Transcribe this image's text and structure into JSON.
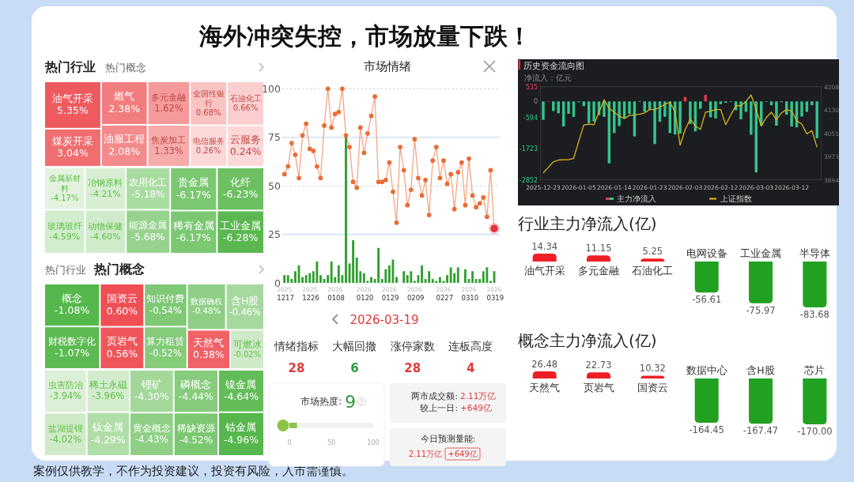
{
  "chart_data": [
    {
      "type": "other",
      "title": "海外冲突失控，市场放量下跌！",
      "annotations": [
        "案例仅供教学，不作为投资建议，投资有风险，入市需谨慎。"
      ]
    },
    {
      "type": "other",
      "title": "热门行业",
      "subtitle": "热门概念",
      "categories": [
        "油气开采",
        "煤炭开采",
        "燃气",
        "油服工程",
        "多元金融",
        "焦炭加工",
        "全国性银行",
        "石油化工",
        "电信服务",
        "云服务"
      ],
      "values": [
        5.35,
        3.04,
        2.38,
        2.08,
        1.62,
        1.33,
        0.68,
        0.66,
        0.26,
        0.24
      ],
      "value_labels": [
        "5.35%",
        "3.04%",
        "2.38%",
        "2.08%",
        "1.62%",
        "1.33%",
        "0.68%",
        "0.66%",
        "0.26%",
        "0.24%"
      ],
      "colors": [
        "#ee5a5e",
        "#f06d70",
        "#f27d7f",
        "#f38a8b",
        "#f59a9a",
        "#f7abab",
        "#fac3c3",
        "#fbcfcf",
        "#fcd8d8",
        "#fcd8d8"
      ]
    },
    {
      "type": "other",
      "categories": [
        "金属新材料",
        "玻璃玻纤",
        "冶钢原料",
        "动物保健",
        "农用化工",
        "能源金属",
        "贵金属",
        "稀有金属",
        "化纤",
        "工业金属"
      ],
      "values": [
        -4.17,
        -4.59,
        -4.21,
        -4.6,
        -5.18,
        -5.68,
        -6.17,
        -6.17,
        -6.23,
        -6.28
      ],
      "value_labels": [
        "-4.17%",
        "-4.59%",
        "-4.21%",
        "-4.60%",
        "-5.18%",
        "-5.68%",
        "-6.17%",
        "-6.17%",
        "-6.23%",
        "-6.28%"
      ],
      "colors": [
        "#e2f2de",
        "#d3ecce",
        "#d7eed2",
        "#d0ebca",
        "#a9dca1",
        "#97d38e",
        "#7cc872",
        "#7cc872",
        "#6cc062",
        "#5bb851"
      ]
    },
    {
      "type": "other",
      "title": "热门概念",
      "subtitle": "热门行业",
      "categories": [
        "概念",
        "财税数字化",
        "国资云",
        "页岩气",
        "知识付费",
        "算力租赁",
        "数据确权",
        "含H股",
        "天然气",
        "可燃冰"
      ],
      "values": [
        -1.08,
        -1.07,
        0.6,
        0.56,
        -0.54,
        -0.52,
        -0.48,
        -0.46,
        0.38,
        -0.02
      ],
      "value_labels": [
        "-1.08%",
        "-1.07%",
        "0.60%",
        "0.56%",
        "-0.54%",
        "-0.52%",
        "-0.48%",
        "-0.46%",
        "0.38%",
        "-0.02%"
      ],
      "colors": [
        "#56b84c",
        "#5bba51",
        "#ee4f55",
        "#ef565b",
        "#7fc875",
        "#84cb7a",
        "#8ecf85",
        "#a6d99e",
        "#f06268",
        "#cfeac8"
      ]
    },
    {
      "type": "other",
      "categories": [
        "虫害防治",
        "盐湖提锂",
        "稀土永磁",
        "钛金属",
        "锂矿",
        "黄金概念",
        "磷概念",
        "稀缺资源",
        "镍金属",
        "钴金属"
      ],
      "values": [
        -3.94,
        -4.02,
        -3.96,
        -4.29,
        -4.3,
        -4.43,
        -4.44,
        -4.52,
        -4.64,
        -4.96
      ],
      "value_labels": [
        "-3.94%",
        "-4.02%",
        "-3.96%",
        "-4.29%",
        "-4.30%",
        "-4.43%",
        "-4.44%",
        "-4.52%",
        "-4.64%",
        "-4.96%"
      ],
      "colors": [
        "#dcefd7",
        "#d0eac9",
        "#d3ecce",
        "#b0dea8",
        "#a3d89a",
        "#8fd086",
        "#86cc7c",
        "#7cc872",
        "#62bd58",
        "#56b74c"
      ]
    },
    {
      "type": "line",
      "title": "市场情绪",
      "categories": [
        "2025 1217",
        null,
        null,
        null,
        null,
        null,
        null,
        "2025 1226",
        null,
        null,
        null,
        null,
        null,
        null,
        "2026 0108",
        null,
        null,
        null,
        null,
        null,
        null,
        null,
        "2026 0120",
        null,
        null,
        null,
        null,
        null,
        null,
        "2026 0129",
        null,
        null,
        null,
        null,
        null,
        null,
        "2026 0209",
        null,
        null,
        null,
        null,
        null,
        null,
        null,
        "2026 0227",
        null,
        null,
        null,
        null,
        null,
        null,
        "2026 0310",
        null,
        null,
        null,
        null,
        null,
        null,
        "2026 0319"
      ],
      "ylim": [
        0,
        100
      ],
      "yticks": [
        0,
        25,
        50,
        75,
        100
      ],
      "marker": "circle",
      "ref_lines": [
        {
          "axis": "y",
          "value": 25,
          "color": "#cfe3f7"
        },
        {
          "axis": "y",
          "value": 50,
          "color": "#cccccc",
          "line_style": "dotted"
        },
        {
          "axis": "y",
          "value": 75,
          "color": "#cfe3f7"
        },
        {
          "axis": "y",
          "value": 100,
          "color": "#cccccc",
          "line_style": "dotted"
        }
      ],
      "series": [
        {
          "type": "bar",
          "color": "#2e9e2e",
          "values": [
            4,
            4,
            2,
            6,
            9,
            3,
            4,
            5,
            6,
            11,
            4,
            2,
            4,
            11,
            3,
            9,
            4,
            75,
            10,
            22,
            13,
            6,
            5,
            1,
            3,
            2,
            18,
            2,
            7,
            9,
            12,
            3,
            0,
            6,
            4,
            6,
            1,
            4,
            9,
            2,
            6,
            2,
            1,
            3,
            1,
            4,
            8,
            5,
            8,
            0,
            7,
            2,
            6,
            2,
            2,
            6,
            8,
            1,
            6
          ]
        },
        {
          "type": "line",
          "color": "#ec6b36",
          "values": [
            56,
            60,
            72,
            66,
            54,
            76,
            82,
            69,
            68,
            60,
            54,
            81,
            100,
            80,
            87,
            88,
            100,
            76,
            70,
            52,
            49,
            80,
            67,
            77,
            86,
            96,
            52,
            52,
            53,
            62,
            47,
            31,
            70,
            58,
            40,
            48,
            74,
            54,
            45,
            53,
            35,
            63,
            70,
            54,
            63,
            51,
            56,
            38,
            57,
            62,
            40,
            64,
            45,
            39,
            41,
            44,
            34,
            58,
            28
          ]
        },
        {
          "type": "scatter",
          "color": "#e8323c",
          "values": [
            null,
            null,
            null,
            null,
            null,
            null,
            null,
            null,
            null,
            null,
            null,
            null,
            null,
            null,
            null,
            null,
            null,
            null,
            null,
            null,
            null,
            null,
            null,
            null,
            null,
            null,
            null,
            null,
            null,
            null,
            null,
            null,
            null,
            null,
            null,
            null,
            null,
            null,
            null,
            null,
            null,
            null,
            null,
            null,
            null,
            null,
            null,
            null,
            null,
            null,
            null,
            null,
            null,
            null,
            null,
            null,
            null,
            null,
            28
          ]
        }
      ]
    },
    {
      "type": "other",
      "title": "2026-03-19",
      "categories": [
        "情绪指标",
        "大幅回撤",
        "涨停家数",
        "连板高度"
      ],
      "values": [
        28,
        6,
        28,
        4
      ],
      "colors": [
        "#e03a3a",
        "#2a9a3a",
        "#e03a3a",
        "#e03a3a"
      ],
      "data_labels": true
    },
    {
      "type": "bar",
      "orientation": "horizontal",
      "title": "市场热度:",
      "annotations": [
        "9"
      ],
      "categories": [
        null
      ],
      "values": [
        9
      ],
      "color": "#8bc34a",
      "xlim": [
        0,
        100
      ],
      "xticks": [
        0,
        50,
        100
      ]
    },
    {
      "type": "other",
      "annotations": [
        "两市成交额:",
        "2.11万亿",
        "较上一日:",
        "+649亿"
      ]
    },
    {
      "type": "other",
      "title": "今日预测量能:",
      "annotations": [
        "2.11万亿",
        "+649亿"
      ]
    },
    {
      "type": "bar",
      "title": "历史资金流向图",
      "ylabel": "净流入：亿元",
      "categories": [
        "2025-12-23",
        null,
        null,
        null,
        null,
        null,
        null,
        "2026-01-05",
        null,
        null,
        null,
        null,
        null,
        null,
        "2026-01-14",
        null,
        null,
        null,
        null,
        null,
        null,
        "2026-01-23",
        null,
        null,
        null,
        null,
        null,
        null,
        "2026-02-03",
        null,
        null,
        null,
        null,
        null,
        null,
        "2026-02-12",
        null,
        null,
        null,
        null,
        null,
        null,
        "2026-03-03",
        null,
        null,
        null,
        null,
        null,
        null,
        "2026-03-12",
        null,
        null,
        null,
        null,
        null
      ],
      "ylim": [
        -2852,
        535
      ],
      "yticks": [
        -2852,
        -1723,
        -594,
        0,
        535
      ],
      "y2lim": [
        3894,
        4208
      ],
      "y2ticks": [
        3894,
        3973,
        4051,
        4130,
        4208
      ],
      "legend": "bottom",
      "series": [
        {
          "name": "主力净流入",
          "type": "bar",
          "colors": [
            "#35c48a",
            "#e23b4e",
            "#35c48a",
            "#35c48a",
            "#35c48a",
            "#35c48a",
            "#35c48a",
            "#35c48a",
            "#35c48a",
            "#35c48a",
            "#35c48a",
            "#35c48a",
            "#35c48a",
            "#35c48a",
            "#35c48a",
            "#35c48a",
            "#35c48a",
            "#35c48a",
            "#35c48a",
            "#35c48a",
            "#35c48a",
            "#35c48a",
            "#35c48a",
            "#35c48a",
            "#35c48a",
            "#35c48a",
            "#35c48a",
            "#35c48a",
            "#e23b4e",
            "#35c48a",
            "#35c48a",
            "#35c48a",
            "#e23b4e",
            "#35c48a",
            "#35c48a",
            "#35c48a",
            "#35c48a",
            "#35c48a",
            "#35c48a",
            "#35c48a",
            "#35c48a",
            "#35c48a",
            "#35c48a",
            "#35c48a",
            "#35c48a",
            "#35c48a",
            "#35c48a",
            "#35c48a",
            "#35c48a",
            "#35c48a",
            "#35c48a",
            "#35c48a",
            "#35c48a",
            "#35c48a",
            "#35c48a"
          ],
          "values": [
            -670,
            10,
            -350,
            -430,
            -910,
            -450,
            -560,
            -30,
            -170,
            -790,
            -730,
            -500,
            -560,
            -2250,
            -1150,
            -890,
            -600,
            -460,
            -1270,
            -20,
            -380,
            -290,
            -1550,
            -740,
            -560,
            -1150,
            -1200,
            -1170,
            160,
            -820,
            -1090,
            -270,
            240,
            -580,
            -620,
            -100,
            -50,
            -20,
            -320,
            -650,
            -380,
            -1210,
            -2580,
            -880,
            -20,
            -140,
            -880,
            -30,
            -480,
            -910,
            -940,
            -550,
            -380,
            -140,
            -1340
          ]
        },
        {
          "name": "上证指数",
          "type": "line",
          "axis": "y2",
          "color": "#d6b41e",
          "values": [
            3918,
            3936,
            3955,
            3961,
            3962,
            3962,
            3967,
            4024,
            4079,
            4082,
            4080,
            4122,
            4164,
            4135,
            4122,
            4109,
            4100,
            4111,
            4113,
            4115,
            4120,
            4131,
            4131,
            4138,
            4149,
            4156,
            4122,
            4011,
            4064,
            4099,
            4076,
            4064,
            4122,
            4126,
            4131,
            4131,
            4080,
            4113,
            4144,
            4144,
            4159,
            4180,
            4131,
            4076,
            4104,
            4122,
            4097,
            4120,
            4131,
            4126,
            4093,
            4082,
            4049,
            4060,
            4004
          ]
        }
      ]
    },
    {
      "type": "bar",
      "title": "行业主力净流入(亿)",
      "categories": [
        "油气开采",
        "多元金融",
        "石油化工",
        "电网设备",
        "工业金属",
        "半导体"
      ],
      "values": [
        14.34,
        11.15,
        5.25,
        -56.61,
        -75.97,
        -83.68
      ],
      "value_labels": [
        "14.34",
        "11.15",
        "5.25",
        "-56.61",
        "-75.97",
        "-83.68"
      ],
      "colors": [
        "#ee1f24",
        "#ee1f24",
        "#ee1f24",
        "#22a022",
        "#22a022",
        "#22a022"
      ]
    },
    {
      "type": "bar",
      "title": "概念主力净流入(亿)",
      "categories": [
        "天然气",
        "页岩气",
        "国资云",
        "数据中心",
        "含H股",
        "芯片"
      ],
      "values": [
        26.48,
        22.73,
        10.32,
        -164.45,
        -167.47,
        -170
      ],
      "value_labels": [
        "26.48",
        "22.73",
        "10.32",
        "-164.45",
        "-167.47",
        "-170.00"
      ],
      "colors": [
        "#ee1f24",
        "#ee1f24",
        "#ee1f24",
        "#22a022",
        "#22a022",
        "#22a022"
      ]
    }
  ]
}
